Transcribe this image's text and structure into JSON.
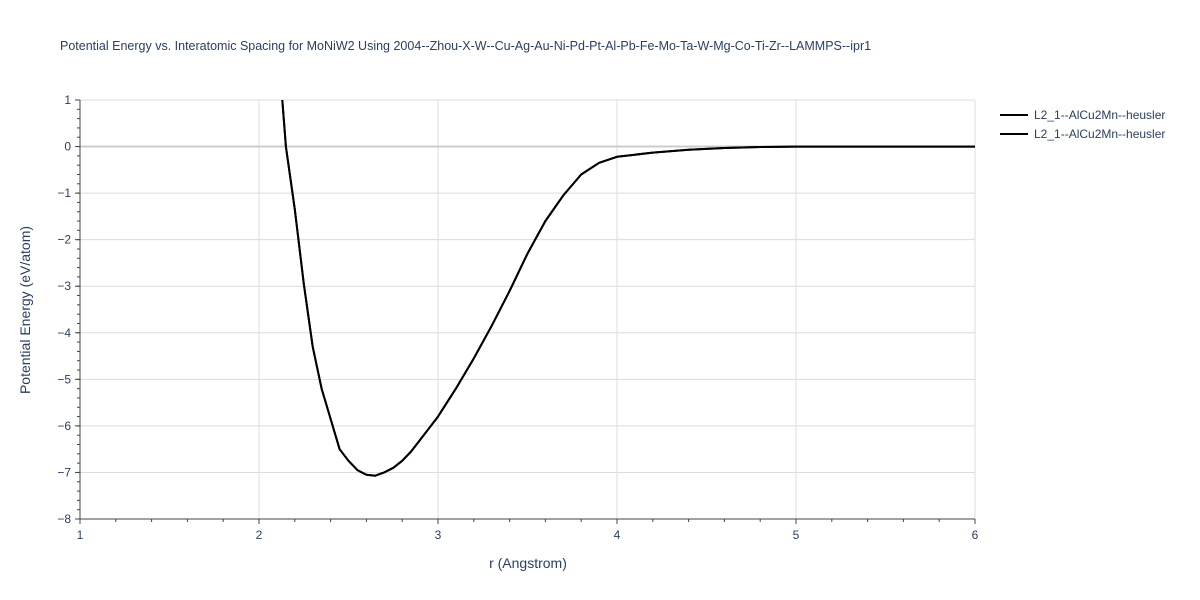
{
  "chart_data": {
    "type": "line",
    "title": "Potential Energy vs. Interatomic Spacing for MoNiW2 Using 2004--Zhou-X-W--Cu-Ag-Au-Ni-Pd-Pt-Al-Pb-Fe-Mo-Ta-W-Mg-Co-Ti-Zr--LAMMPS--ipr1",
    "xlabel": "r (Angstrom)",
    "ylabel": "Potential Energy (eV/atom)",
    "xlim": [
      1,
      6
    ],
    "ylim": [
      -8,
      1
    ],
    "xticks": [
      "1",
      "2",
      "3",
      "4",
      "5",
      "6"
    ],
    "yticks": [
      "1",
      "0",
      "−1",
      "−2",
      "−3",
      "−4",
      "−5",
      "−6",
      "−7",
      "−8"
    ],
    "grid": true,
    "legend_position": "top-right",
    "line_color": "#000000",
    "series": [
      {
        "name": "L2_1--AlCu2Mn--heusler",
        "x": [
          2.13,
          2.15,
          2.2,
          2.25,
          2.3,
          2.35,
          2.4,
          2.45,
          2.5,
          2.55,
          2.6,
          2.65,
          2.7,
          2.75,
          2.8,
          2.85,
          2.9,
          2.95,
          3.0,
          3.1,
          3.2,
          3.3,
          3.4,
          3.5,
          3.6,
          3.7,
          3.8,
          3.9,
          4.0,
          4.2,
          4.4,
          4.6,
          4.8,
          5.0,
          5.5,
          6.0
        ],
        "y": [
          1.0,
          0.0,
          -1.35,
          -2.95,
          -4.3,
          -5.2,
          -5.85,
          -6.5,
          -6.75,
          -6.95,
          -7.05,
          -7.07,
          -7.0,
          -6.9,
          -6.75,
          -6.55,
          -6.3,
          -6.05,
          -5.8,
          -5.2,
          -4.55,
          -3.85,
          -3.1,
          -2.3,
          -1.6,
          -1.05,
          -0.6,
          -0.35,
          -0.22,
          -0.13,
          -0.07,
          -0.03,
          -0.01,
          0.0,
          0.0,
          0.0
        ]
      },
      {
        "name": "L2_1--AlCu2Mn--heusler",
        "x": [
          2.13,
          2.15,
          2.2,
          2.25,
          2.3,
          2.35,
          2.4,
          2.45,
          2.5,
          2.55,
          2.6,
          2.65,
          2.7,
          2.75,
          2.8,
          2.85,
          2.9,
          2.95,
          3.0,
          3.1,
          3.2,
          3.3,
          3.4,
          3.5,
          3.6,
          3.7,
          3.8,
          3.9,
          4.0,
          4.2,
          4.4,
          4.6,
          4.8,
          5.0,
          5.5,
          6.0
        ],
        "y": [
          1.0,
          0.0,
          -1.35,
          -2.95,
          -4.3,
          -5.2,
          -5.85,
          -6.5,
          -6.75,
          -6.95,
          -7.05,
          -7.07,
          -7.0,
          -6.9,
          -6.75,
          -6.55,
          -6.3,
          -6.05,
          -5.8,
          -5.2,
          -4.55,
          -3.85,
          -3.1,
          -2.3,
          -1.6,
          -1.05,
          -0.6,
          -0.35,
          -0.22,
          -0.13,
          -0.07,
          -0.03,
          -0.01,
          0.0,
          0.0,
          0.0
        ]
      }
    ]
  }
}
